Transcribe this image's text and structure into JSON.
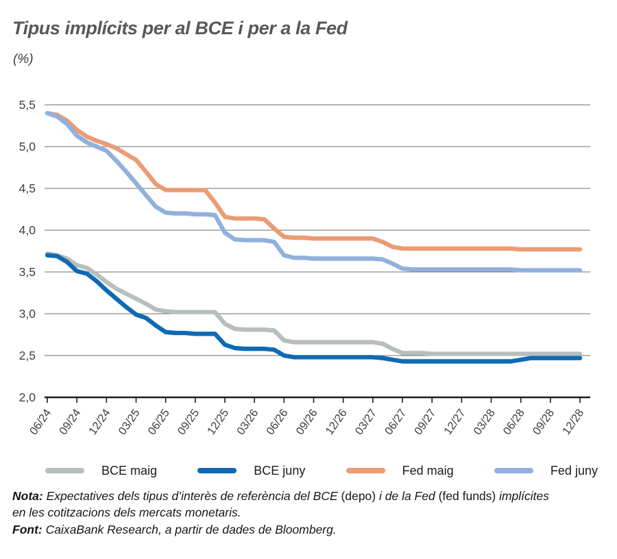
{
  "header": {
    "title": "Tipus implícits per al BCE i per a la Fed",
    "subtitle": "(%)"
  },
  "colors": {
    "title_text": "#57585a",
    "grid": "#6d6e70",
    "axis": "#1d1d1b",
    "tick_text": "#3f4042",
    "body_text": "#161616"
  },
  "chart_data": {
    "type": "line",
    "title": "Tipus implícits per al BCE i per a la Fed",
    "ylabel": "(%)",
    "x_unit": "monthly, 06/24 through 12/28",
    "months": 55,
    "x_tick_labels": [
      "06/24",
      "09/24",
      "12/24",
      "03/25",
      "06/25",
      "09/25",
      "12/25",
      "03/26",
      "06/26",
      "09/26",
      "12/26",
      "03/27",
      "06/27",
      "09/27",
      "12/27",
      "03/28",
      "06/28",
      "09/28",
      "12/28"
    ],
    "y_tick_labels": [
      "5,5",
      "5,0",
      "4,5",
      "4,0",
      "3,5",
      "3,0",
      "2,5",
      "2,0"
    ],
    "ylim": [
      2.0,
      5.5
    ],
    "grid": "horizontal",
    "legend_position": "bottom",
    "series": [
      {
        "name": "BCE maig",
        "color": "#b6bebe",
        "values": [
          3.72,
          3.7,
          3.66,
          3.58,
          3.55,
          3.47,
          3.38,
          3.3,
          3.24,
          3.18,
          3.12,
          3.05,
          3.03,
          3.02,
          3.02,
          3.02,
          3.02,
          3.02,
          2.88,
          2.82,
          2.81,
          2.81,
          2.81,
          2.8,
          2.68,
          2.66,
          2.66,
          2.66,
          2.66,
          2.66,
          2.66,
          2.66,
          2.66,
          2.66,
          2.64,
          2.58,
          2.53,
          2.53,
          2.53,
          2.52,
          2.52,
          2.52,
          2.52,
          2.52,
          2.52,
          2.52,
          2.52,
          2.52,
          2.52,
          2.52,
          2.52,
          2.52,
          2.52,
          2.52,
          2.52
        ]
      },
      {
        "name": "BCE juny",
        "color": "#0f6ab4",
        "values": [
          3.7,
          3.69,
          3.62,
          3.51,
          3.48,
          3.39,
          3.28,
          3.18,
          3.08,
          2.99,
          2.95,
          2.86,
          2.78,
          2.77,
          2.77,
          2.76,
          2.76,
          2.76,
          2.63,
          2.59,
          2.58,
          2.58,
          2.58,
          2.57,
          2.5,
          2.48,
          2.48,
          2.48,
          2.48,
          2.48,
          2.48,
          2.48,
          2.48,
          2.48,
          2.47,
          2.45,
          2.43,
          2.43,
          2.43,
          2.43,
          2.43,
          2.43,
          2.43,
          2.43,
          2.43,
          2.43,
          2.43,
          2.43,
          2.45,
          2.47,
          2.47,
          2.47,
          2.47,
          2.47,
          2.47
        ]
      },
      {
        "name": "Fed maig",
        "color": "#eb9c74",
        "values": [
          5.4,
          5.38,
          5.31,
          5.2,
          5.12,
          5.07,
          5.03,
          4.98,
          4.91,
          4.84,
          4.7,
          4.55,
          4.48,
          4.48,
          4.48,
          4.48,
          4.48,
          4.33,
          4.16,
          4.14,
          4.14,
          4.14,
          4.13,
          4.02,
          3.92,
          3.91,
          3.91,
          3.9,
          3.9,
          3.9,
          3.9,
          3.9,
          3.9,
          3.9,
          3.86,
          3.8,
          3.78,
          3.78,
          3.78,
          3.78,
          3.78,
          3.78,
          3.78,
          3.78,
          3.78,
          3.78,
          3.78,
          3.78,
          3.77,
          3.77,
          3.77,
          3.77,
          3.77,
          3.77,
          3.77
        ]
      },
      {
        "name": "Fed juny",
        "color": "#92b0dc",
        "values": [
          5.4,
          5.36,
          5.27,
          5.13,
          5.05,
          5.0,
          4.95,
          4.83,
          4.7,
          4.56,
          4.42,
          4.28,
          4.21,
          4.2,
          4.2,
          4.19,
          4.19,
          4.18,
          3.97,
          3.89,
          3.88,
          3.88,
          3.88,
          3.86,
          3.7,
          3.67,
          3.67,
          3.66,
          3.66,
          3.66,
          3.66,
          3.66,
          3.66,
          3.66,
          3.65,
          3.6,
          3.54,
          3.53,
          3.53,
          3.53,
          3.53,
          3.53,
          3.53,
          3.53,
          3.53,
          3.53,
          3.53,
          3.53,
          3.52,
          3.52,
          3.52,
          3.52,
          3.52,
          3.52,
          3.52
        ]
      }
    ]
  },
  "note": {
    "label": "Nota:",
    "line1_a": " Expectatives dels tipus d’interès de referència del BCE ",
    "line1_b": "(depo)",
    "line1_c": " i de la Fed ",
    "line1_d": "(fed funds)",
    "line1_e": " implícites",
    "line2": "en les cotitzacions dels mercats monetaris."
  },
  "source": {
    "label": "Font:",
    "text": " CaixaBank Research, a partir de dades de Bloomberg."
  }
}
